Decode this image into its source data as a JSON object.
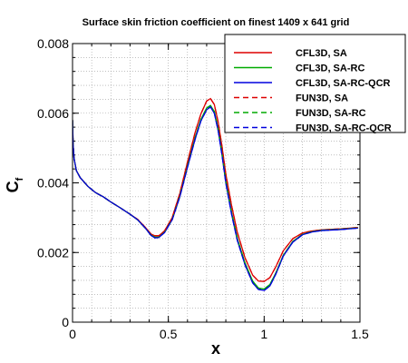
{
  "chart_data": {
    "type": "line",
    "title": "Surface skin friction coefficient on finest 1409 x 641 grid",
    "xlabel": "x",
    "ylabel_main": "C",
    "ylabel_sub": "f",
    "xlim": [
      0,
      1.5
    ],
    "ylim": [
      0,
      0.008
    ],
    "grid": true,
    "legend_position": "top-right",
    "x_ticks": [
      0,
      0.5,
      1,
      1.5
    ],
    "x_tick_labels": [
      "0",
      "0.5",
      "1",
      "1.5"
    ],
    "y_ticks": [
      0,
      0.002,
      0.004,
      0.006,
      0.008
    ],
    "y_tick_labels": [
      "0",
      "0.002",
      "0.004",
      "0.006",
      "0.008"
    ],
    "series": [
      {
        "name": "CFL3D, SA",
        "color": "#dd0000",
        "dash": "solid",
        "points": [
          [
            0.0,
            0.0058
          ],
          [
            0.003,
            0.0051
          ],
          [
            0.008,
            0.0047
          ],
          [
            0.02,
            0.00435
          ],
          [
            0.04,
            0.00415
          ],
          [
            0.08,
            0.0039
          ],
          [
            0.12,
            0.00372
          ],
          [
            0.16,
            0.0036
          ],
          [
            0.2,
            0.00345
          ],
          [
            0.25,
            0.00328
          ],
          [
            0.3,
            0.0031
          ],
          [
            0.34,
            0.00295
          ],
          [
            0.38,
            0.00272
          ],
          [
            0.41,
            0.00253
          ],
          [
            0.43,
            0.00248
          ],
          [
            0.45,
            0.00248
          ],
          [
            0.48,
            0.00262
          ],
          [
            0.52,
            0.003
          ],
          [
            0.56,
            0.0037
          ],
          [
            0.6,
            0.0046
          ],
          [
            0.64,
            0.00545
          ],
          [
            0.67,
            0.00598
          ],
          [
            0.7,
            0.00635
          ],
          [
            0.72,
            0.00642
          ],
          [
            0.74,
            0.00625
          ],
          [
            0.76,
            0.00575
          ],
          [
            0.78,
            0.00505
          ],
          [
            0.8,
            0.00425
          ],
          [
            0.83,
            0.00335
          ],
          [
            0.86,
            0.00258
          ],
          [
            0.9,
            0.00185
          ],
          [
            0.94,
            0.00135
          ],
          [
            0.97,
            0.00118
          ],
          [
            1.0,
            0.00117
          ],
          [
            1.03,
            0.00128
          ],
          [
            1.06,
            0.00158
          ],
          [
            1.1,
            0.00205
          ],
          [
            1.15,
            0.0024
          ],
          [
            1.2,
            0.00256
          ],
          [
            1.25,
            0.00262
          ],
          [
            1.3,
            0.00265
          ],
          [
            1.4,
            0.00268
          ],
          [
            1.49,
            0.00272
          ]
        ]
      },
      {
        "name": "CFL3D, SA-RC",
        "color": "#00aa00",
        "dash": "solid",
        "points": [
          [
            0.0,
            0.0058
          ],
          [
            0.003,
            0.0051
          ],
          [
            0.008,
            0.0047
          ],
          [
            0.02,
            0.00435
          ],
          [
            0.04,
            0.00415
          ],
          [
            0.08,
            0.0039
          ],
          [
            0.12,
            0.00372
          ],
          [
            0.16,
            0.0036
          ],
          [
            0.2,
            0.00345
          ],
          [
            0.25,
            0.00328
          ],
          [
            0.3,
            0.0031
          ],
          [
            0.34,
            0.00294
          ],
          [
            0.38,
            0.0027
          ],
          [
            0.41,
            0.0025
          ],
          [
            0.43,
            0.00244
          ],
          [
            0.45,
            0.00244
          ],
          [
            0.48,
            0.00258
          ],
          [
            0.52,
            0.00295
          ],
          [
            0.56,
            0.00362
          ],
          [
            0.6,
            0.00448
          ],
          [
            0.64,
            0.0053
          ],
          [
            0.67,
            0.00582
          ],
          [
            0.7,
            0.00615
          ],
          [
            0.72,
            0.00622
          ],
          [
            0.74,
            0.00605
          ],
          [
            0.76,
            0.00555
          ],
          [
            0.78,
            0.00485
          ],
          [
            0.8,
            0.00405
          ],
          [
            0.83,
            0.00315
          ],
          [
            0.86,
            0.0024
          ],
          [
            0.9,
            0.0017
          ],
          [
            0.94,
            0.00118
          ],
          [
            0.97,
            0.00098
          ],
          [
            1.0,
            0.00095
          ],
          [
            1.03,
            0.00108
          ],
          [
            1.06,
            0.0014
          ],
          [
            1.1,
            0.00192
          ],
          [
            1.15,
            0.00232
          ],
          [
            1.2,
            0.00252
          ],
          [
            1.25,
            0.0026
          ],
          [
            1.3,
            0.00264
          ],
          [
            1.4,
            0.00267
          ],
          [
            1.49,
            0.00271
          ]
        ]
      },
      {
        "name": "CFL3D, SA-RC-QCR",
        "color": "#0000dd",
        "dash": "solid",
        "points": [
          [
            0.0,
            0.0058
          ],
          [
            0.003,
            0.0051
          ],
          [
            0.008,
            0.0047
          ],
          [
            0.02,
            0.00435
          ],
          [
            0.04,
            0.00415
          ],
          [
            0.08,
            0.0039
          ],
          [
            0.12,
            0.00372
          ],
          [
            0.16,
            0.0036
          ],
          [
            0.2,
            0.00345
          ],
          [
            0.25,
            0.00328
          ],
          [
            0.3,
            0.0031
          ],
          [
            0.34,
            0.00294
          ],
          [
            0.38,
            0.0027
          ],
          [
            0.41,
            0.00249
          ],
          [
            0.43,
            0.00242
          ],
          [
            0.45,
            0.00243
          ],
          [
            0.48,
            0.00257
          ],
          [
            0.52,
            0.00294
          ],
          [
            0.56,
            0.0036
          ],
          [
            0.6,
            0.00445
          ],
          [
            0.64,
            0.00526
          ],
          [
            0.67,
            0.00578
          ],
          [
            0.7,
            0.0061
          ],
          [
            0.72,
            0.00618
          ],
          [
            0.74,
            0.006
          ],
          [
            0.76,
            0.0055
          ],
          [
            0.78,
            0.0048
          ],
          [
            0.8,
            0.004
          ],
          [
            0.83,
            0.0031
          ],
          [
            0.86,
            0.00235
          ],
          [
            0.9,
            0.00165
          ],
          [
            0.94,
            0.00113
          ],
          [
            0.97,
            0.00094
          ],
          [
            1.0,
            0.00091
          ],
          [
            1.03,
            0.00104
          ],
          [
            1.06,
            0.00137
          ],
          [
            1.1,
            0.0019
          ],
          [
            1.15,
            0.0023
          ],
          [
            1.2,
            0.00251
          ],
          [
            1.25,
            0.00259
          ],
          [
            1.3,
            0.00263
          ],
          [
            1.4,
            0.00266
          ],
          [
            1.49,
            0.0027
          ]
        ]
      },
      {
        "name": "FUN3D, SA",
        "color": "#dd0000",
        "dash": "dashed",
        "points": [
          [
            0.0,
            0.0058
          ],
          [
            0.003,
            0.0051
          ],
          [
            0.008,
            0.0047
          ],
          [
            0.02,
            0.00435
          ],
          [
            0.04,
            0.00415
          ],
          [
            0.08,
            0.0039
          ],
          [
            0.12,
            0.00372
          ],
          [
            0.16,
            0.0036
          ],
          [
            0.2,
            0.00345
          ],
          [
            0.25,
            0.00328
          ],
          [
            0.3,
            0.0031
          ],
          [
            0.34,
            0.00295
          ],
          [
            0.38,
            0.00272
          ],
          [
            0.41,
            0.00253
          ],
          [
            0.43,
            0.00248
          ],
          [
            0.45,
            0.00248
          ],
          [
            0.48,
            0.00262
          ],
          [
            0.52,
            0.003
          ],
          [
            0.56,
            0.0037
          ],
          [
            0.6,
            0.0046
          ],
          [
            0.64,
            0.00545
          ],
          [
            0.67,
            0.00598
          ],
          [
            0.7,
            0.00635
          ],
          [
            0.72,
            0.00642
          ],
          [
            0.74,
            0.00625
          ],
          [
            0.76,
            0.00575
          ],
          [
            0.78,
            0.00505
          ],
          [
            0.8,
            0.00425
          ],
          [
            0.83,
            0.00335
          ],
          [
            0.86,
            0.00258
          ],
          [
            0.9,
            0.00185
          ],
          [
            0.94,
            0.00135
          ],
          [
            0.97,
            0.00118
          ],
          [
            1.0,
            0.00117
          ],
          [
            1.03,
            0.00128
          ],
          [
            1.06,
            0.00158
          ],
          [
            1.1,
            0.00205
          ],
          [
            1.15,
            0.0024
          ],
          [
            1.2,
            0.00256
          ],
          [
            1.25,
            0.00262
          ],
          [
            1.3,
            0.00265
          ],
          [
            1.4,
            0.00268
          ],
          [
            1.49,
            0.00272
          ]
        ]
      },
      {
        "name": "FUN3D, SA-RC",
        "color": "#00aa00",
        "dash": "dashed",
        "points": [
          [
            0.0,
            0.0058
          ],
          [
            0.003,
            0.0051
          ],
          [
            0.008,
            0.0047
          ],
          [
            0.02,
            0.00435
          ],
          [
            0.04,
            0.00415
          ],
          [
            0.08,
            0.0039
          ],
          [
            0.12,
            0.00372
          ],
          [
            0.16,
            0.0036
          ],
          [
            0.2,
            0.00345
          ],
          [
            0.25,
            0.00328
          ],
          [
            0.3,
            0.0031
          ],
          [
            0.34,
            0.00294
          ],
          [
            0.38,
            0.0027
          ],
          [
            0.41,
            0.0025
          ],
          [
            0.43,
            0.00244
          ],
          [
            0.45,
            0.00244
          ],
          [
            0.48,
            0.00258
          ],
          [
            0.52,
            0.00295
          ],
          [
            0.56,
            0.00362
          ],
          [
            0.6,
            0.00448
          ],
          [
            0.64,
            0.0053
          ],
          [
            0.67,
            0.00582
          ],
          [
            0.7,
            0.00615
          ],
          [
            0.72,
            0.00622
          ],
          [
            0.74,
            0.00605
          ],
          [
            0.76,
            0.00555
          ],
          [
            0.78,
            0.00485
          ],
          [
            0.8,
            0.00405
          ],
          [
            0.83,
            0.00315
          ],
          [
            0.86,
            0.0024
          ],
          [
            0.9,
            0.0017
          ],
          [
            0.94,
            0.00118
          ],
          [
            0.97,
            0.00098
          ],
          [
            1.0,
            0.00095
          ],
          [
            1.03,
            0.00108
          ],
          [
            1.06,
            0.0014
          ],
          [
            1.1,
            0.00192
          ],
          [
            1.15,
            0.00232
          ],
          [
            1.2,
            0.00252
          ],
          [
            1.25,
            0.0026
          ],
          [
            1.3,
            0.00264
          ],
          [
            1.4,
            0.00267
          ],
          [
            1.49,
            0.00271
          ]
        ]
      },
      {
        "name": "FUN3D, SA-RC-QCR",
        "color": "#0000dd",
        "dash": "dashed",
        "points": [
          [
            0.0,
            0.0058
          ],
          [
            0.003,
            0.0051
          ],
          [
            0.008,
            0.0047
          ],
          [
            0.02,
            0.00435
          ],
          [
            0.04,
            0.00415
          ],
          [
            0.08,
            0.0039
          ],
          [
            0.12,
            0.00372
          ],
          [
            0.16,
            0.0036
          ],
          [
            0.2,
            0.00345
          ],
          [
            0.25,
            0.00328
          ],
          [
            0.3,
            0.0031
          ],
          [
            0.34,
            0.00294
          ],
          [
            0.38,
            0.0027
          ],
          [
            0.41,
            0.00249
          ],
          [
            0.43,
            0.00242
          ],
          [
            0.45,
            0.00243
          ],
          [
            0.48,
            0.00257
          ],
          [
            0.52,
            0.00294
          ],
          [
            0.56,
            0.0036
          ],
          [
            0.6,
            0.00445
          ],
          [
            0.64,
            0.00526
          ],
          [
            0.67,
            0.00578
          ],
          [
            0.7,
            0.0061
          ],
          [
            0.72,
            0.00618
          ],
          [
            0.74,
            0.006
          ],
          [
            0.76,
            0.0055
          ],
          [
            0.78,
            0.0048
          ],
          [
            0.8,
            0.004
          ],
          [
            0.83,
            0.0031
          ],
          [
            0.86,
            0.00235
          ],
          [
            0.9,
            0.00165
          ],
          [
            0.94,
            0.00113
          ],
          [
            0.97,
            0.00094
          ],
          [
            1.0,
            0.00091
          ],
          [
            1.03,
            0.00104
          ],
          [
            1.06,
            0.00137
          ],
          [
            1.1,
            0.0019
          ],
          [
            1.15,
            0.0023
          ],
          [
            1.2,
            0.00251
          ],
          [
            1.25,
            0.00259
          ],
          [
            1.3,
            0.00263
          ],
          [
            1.4,
            0.00266
          ],
          [
            1.49,
            0.0027
          ]
        ]
      }
    ]
  }
}
